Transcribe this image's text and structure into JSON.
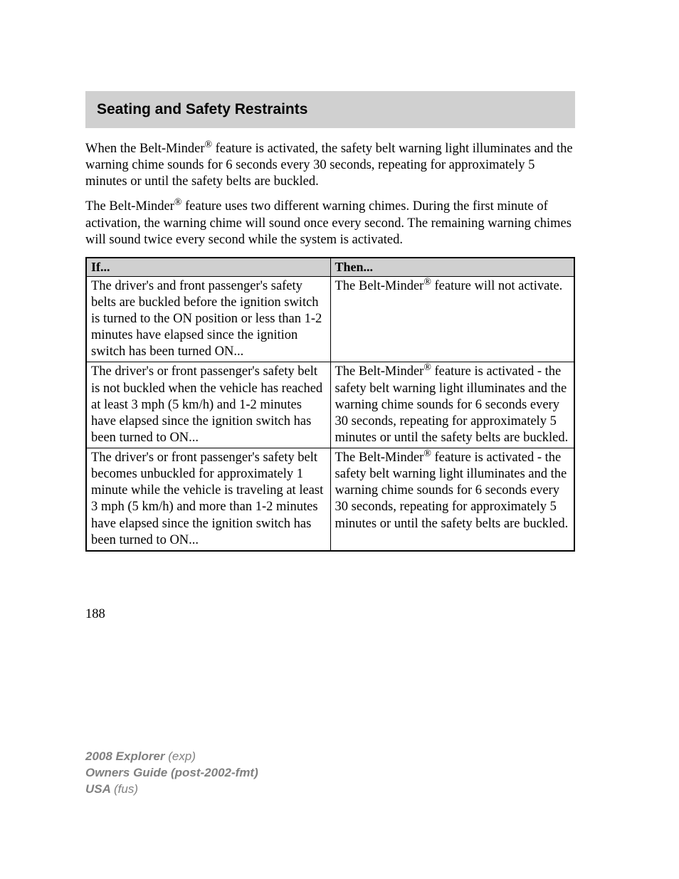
{
  "section": {
    "title": "Seating and Safety Restraints"
  },
  "paragraphs": {
    "p1_a": "When the Belt-Minder",
    "p1_b": " feature is activated, the safety belt warning light illuminates and the warning chime sounds for 6 seconds every 30 seconds, repeating for approximately 5 minutes or until the safety belts are buckled.",
    "p2_a": "The Belt-Minder",
    "p2_b": " feature uses two different warning chimes. During the first minute of activation, the warning chime will sound once every second. The remaining warning chimes will sound twice every second while the system is activated."
  },
  "table": {
    "headers": {
      "if": "If...",
      "then": "Then..."
    },
    "rows": {
      "r1": {
        "if": "The driver's and front passenger's safety belts are buckled before the ignition switch is turned to the ON position or less than 1-2 minutes have elapsed since the ignition switch has been turned ON...",
        "then_a": "The Belt-Minder",
        "then_b": " feature will not activate."
      },
      "r2": {
        "if": "The driver's or front passenger's safety belt is not buckled when the vehicle has reached at least 3 mph (5 km/h) and 1-2 minutes have elapsed since the ignition switch has been turned to ON...",
        "then_a": "The Belt-Minder",
        "then_b": " feature is activated - the safety belt warning light illuminates and the warning chime sounds for 6 seconds every 30 seconds, repeating for approximately 5 minutes or until the safety belts are buckled."
      },
      "r3": {
        "if": "The driver's or front passenger's safety belt becomes unbuckled for approximately 1 minute while the vehicle is traveling at least 3 mph (5 km/h) and more than 1-2 minutes have elapsed since the ignition switch has been turned to ON...",
        "then_a": "The Belt-Minder",
        "then_b": " feature is activated - the safety belt warning light illuminates and the warning chime sounds for 6 seconds every 30 seconds, repeating for approximately 5 minutes or until the safety belts are buckled."
      }
    }
  },
  "page_number": "188",
  "footer": {
    "line1_bold": "2008 Explorer ",
    "line1_italic": "(exp)",
    "line2": "Owners Guide (post-2002-fmt)",
    "line3_bold": "USA ",
    "line3_italic": "(fus)"
  },
  "registered_symbol": "®",
  "colors": {
    "header_bg": "#d0d0d0",
    "text": "#000000",
    "footer_text": "#808080",
    "page_bg": "#ffffff",
    "border": "#000000"
  }
}
